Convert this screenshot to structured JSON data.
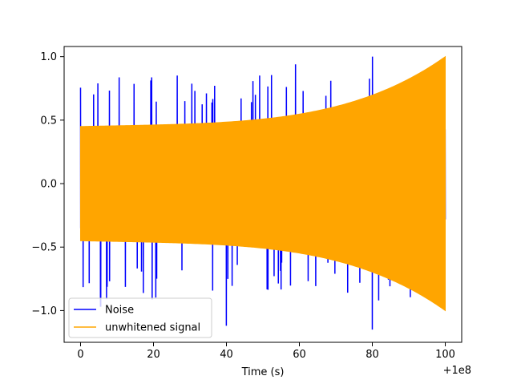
{
  "chart_data": {
    "type": "line",
    "title": "",
    "xlabel": "Time (s)",
    "ylabel": "",
    "x_offset_label": "+1e8",
    "xlim": [
      -4.5,
      104.5
    ],
    "ylim": [
      -1.25,
      1.08
    ],
    "x_ticks": [
      0,
      20,
      40,
      60,
      80,
      100
    ],
    "x_tick_labels": [
      "0",
      "20",
      "40",
      "60",
      "80",
      "100"
    ],
    "y_ticks": [
      -1.0,
      -0.5,
      0.0,
      0.5,
      1.0
    ],
    "y_tick_labels": [
      "−1.0",
      "−0.5",
      "0.0",
      "0.5",
      "1.0"
    ],
    "grid": false,
    "legend_position": "lower-left",
    "series": [
      {
        "name": "Noise",
        "color": "#0000ff",
        "x_range": [
          0,
          100
        ],
        "envelope_base": 0.42,
        "envelope_peak": 1.0,
        "approx_extremes": {
          "max": 1.0,
          "min": -1.15
        }
      },
      {
        "name": "unwhitened signal",
        "color": "#ffa500",
        "x_range": [
          0,
          100
        ],
        "envelope_start": 0.45,
        "envelope_end": 1.0
      }
    ]
  }
}
